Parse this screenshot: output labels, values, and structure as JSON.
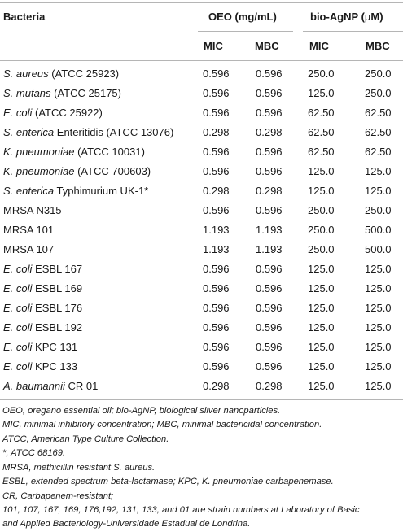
{
  "table": {
    "header": {
      "bacteria": "Bacteria",
      "oeo_group": "OEO (mg/mL)",
      "agnp_group_prefix": "bio-AgNP (",
      "agnp_group_unit": "µ",
      "agnp_group_suffix": "M)",
      "mic": "MIC",
      "mbc": "MBC"
    },
    "rows": [
      {
        "italic": "S. aureus",
        "rest": " (ATCC 25923)",
        "oeo_mic": "0.596",
        "oeo_mbc": "0.596",
        "agnp_mic": "250.0",
        "agnp_mbc": "250.0"
      },
      {
        "italic": "S. mutans",
        "rest": " (ATCC 25175)",
        "oeo_mic": "0.596",
        "oeo_mbc": "0.596",
        "agnp_mic": "125.0",
        "agnp_mbc": "250.0"
      },
      {
        "italic": "E. coli",
        "rest": " (ATCC 25922)",
        "oeo_mic": "0.596",
        "oeo_mbc": "0.596",
        "agnp_mic": "62.50",
        "agnp_mbc": "62.50"
      },
      {
        "italic": "S. enterica",
        "rest": " Enteritidis (ATCC 13076)",
        "oeo_mic": "0.298",
        "oeo_mbc": "0.298",
        "agnp_mic": "62.50",
        "agnp_mbc": "62.50"
      },
      {
        "italic": "K. pneumoniae",
        "rest": " (ATCC 10031)",
        "oeo_mic": "0.596",
        "oeo_mbc": "0.596",
        "agnp_mic": "62.50",
        "agnp_mbc": "62.50"
      },
      {
        "italic": "K. pneumoniae",
        "rest": " (ATCC 700603)",
        "oeo_mic": "0.596",
        "oeo_mbc": "0.596",
        "agnp_mic": "125.0",
        "agnp_mbc": "125.0"
      },
      {
        "italic": "S. enterica",
        "rest": " Typhimurium UK-1*",
        "oeo_mic": "0.298",
        "oeo_mbc": "0.298",
        "agnp_mic": "125.0",
        "agnp_mbc": "125.0"
      },
      {
        "italic": "",
        "rest": "MRSA N315",
        "oeo_mic": "0.596",
        "oeo_mbc": "0.596",
        "agnp_mic": "250.0",
        "agnp_mbc": "250.0"
      },
      {
        "italic": "",
        "rest": "MRSA 101",
        "oeo_mic": "1.193",
        "oeo_mbc": "1.193",
        "agnp_mic": "250.0",
        "agnp_mbc": "500.0"
      },
      {
        "italic": "",
        "rest": "MRSA 107",
        "oeo_mic": "1.193",
        "oeo_mbc": "1.193",
        "agnp_mic": "250.0",
        "agnp_mbc": "500.0"
      },
      {
        "italic": "E. coli",
        "rest": " ESBL 167",
        "oeo_mic": "0.596",
        "oeo_mbc": "0.596",
        "agnp_mic": "125.0",
        "agnp_mbc": "125.0"
      },
      {
        "italic": "E. coli",
        "rest": " ESBL 169",
        "oeo_mic": "0.596",
        "oeo_mbc": "0.596",
        "agnp_mic": "125.0",
        "agnp_mbc": "125.0"
      },
      {
        "italic": "E. coli",
        "rest": " ESBL 176",
        "oeo_mic": "0.596",
        "oeo_mbc": "0.596",
        "agnp_mic": "125.0",
        "agnp_mbc": "125.0"
      },
      {
        "italic": "E. coli",
        "rest": " ESBL 192",
        "oeo_mic": "0.596",
        "oeo_mbc": "0.596",
        "agnp_mic": "125.0",
        "agnp_mbc": "125.0"
      },
      {
        "italic": "E. coli",
        "rest": " KPC 131",
        "oeo_mic": "0.596",
        "oeo_mbc": "0.596",
        "agnp_mic": "125.0",
        "agnp_mbc": "125.0"
      },
      {
        "italic": "E. coli",
        "rest": " KPC 133",
        "oeo_mic": "0.596",
        "oeo_mbc": "0.596",
        "agnp_mic": "125.0",
        "agnp_mbc": "125.0"
      },
      {
        "italic": "A. baumannii",
        "rest": " CR 01",
        "oeo_mic": "0.298",
        "oeo_mbc": "0.298",
        "agnp_mic": "125.0",
        "agnp_mbc": "125.0"
      }
    ]
  },
  "footnotes": [
    "OEO, oregano essential oil; bio-AgNP, biological silver nanoparticles.",
    "MIC, minimal inhibitory concentration; MBC, minimal bactericidal concentration.",
    "ATCC, American Type Culture Collection.",
    "*, ATCC 68169.",
    "MRSA, methicillin resistant S. aureus.",
    "ESBL, extended spectrum beta-lactamase; KPC, K. pneumoniae carbapenemase.",
    "CR, Carbapenem-resistant;",
    "101, 107, 167, 169, 176,192, 131, 133, and 01 are strain numbers at Laboratory of Basic",
    "and Applied Bacteriology-Universidade Estadual de Londrina."
  ]
}
